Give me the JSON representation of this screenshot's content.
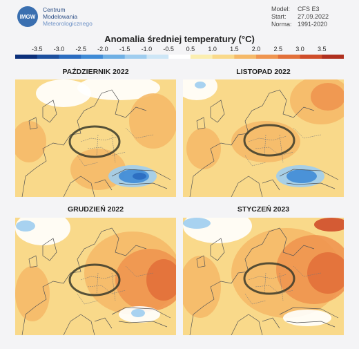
{
  "header": {
    "logo": {
      "badge": "IMGW",
      "lines": [
        "Centrum",
        "Modelowania",
        "Meteorologicznego"
      ]
    },
    "meta": [
      {
        "label": "Model:",
        "value": "CFS E3"
      },
      {
        "label": "Start:",
        "value": "27.09.2022"
      },
      {
        "label": "Norma:",
        "value": "1991-2020"
      }
    ]
  },
  "legend": {
    "title": "Anomalia średniej temperatury (°C)",
    "ticks": [
      "-3.5",
      "-3.0",
      "-2.5",
      "-2.0",
      "-1.5",
      "-1.0",
      "-0.5",
      "0.5",
      "1.0",
      "1.5",
      "2.0",
      "2.5",
      "3.0",
      "3.5"
    ],
    "colors": [
      "#0b2f7a",
      "#1c4f9e",
      "#2a6cc0",
      "#3f8bd6",
      "#6fb0e4",
      "#9fcdef",
      "#cde6f6",
      "#ffffff",
      "#fbeeb0",
      "#f9d98a",
      "#f5b968",
      "#ef9550",
      "#e2703a",
      "#cf4d2a",
      "#b0301f"
    ]
  },
  "panels": [
    {
      "title": "PAŹDZIERNIK 2022"
    },
    {
      "title": "LISTOPAD 2022"
    },
    {
      "title": "GRUDZIEŃ 2022"
    },
    {
      "title": "STYCZEŃ 2023"
    }
  ]
}
